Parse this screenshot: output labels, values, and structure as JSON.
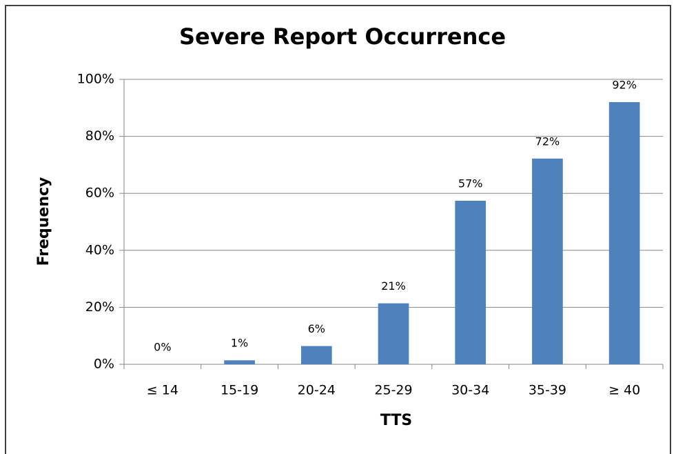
{
  "chart_data": {
    "type": "bar",
    "title": "Severe Report Occurrence",
    "x_label": "TTS",
    "y_label": "Frequency",
    "categories": [
      "≤ 14",
      "15-19",
      "20-24",
      "25-29",
      "30-34",
      "35-39",
      "≥ 40"
    ],
    "values": [
      0,
      1.4,
      6.4,
      21.4,
      57.4,
      72.2,
      92
    ],
    "value_labels": [
      "0%",
      "1%",
      "6%",
      "21%",
      "57%",
      "72%",
      "92%"
    ],
    "color": "#4f81bd",
    "ylim": [
      0,
      100
    ],
    "yticks": [
      {
        "value": 0,
        "label": "0%"
      },
      {
        "value": 20,
        "label": "20%"
      },
      {
        "value": 40,
        "label": "40%"
      },
      {
        "value": 60,
        "label": "60%"
      },
      {
        "value": 80,
        "label": "80%"
      },
      {
        "value": 100,
        "label": "100%"
      }
    ],
    "grid": true
  }
}
